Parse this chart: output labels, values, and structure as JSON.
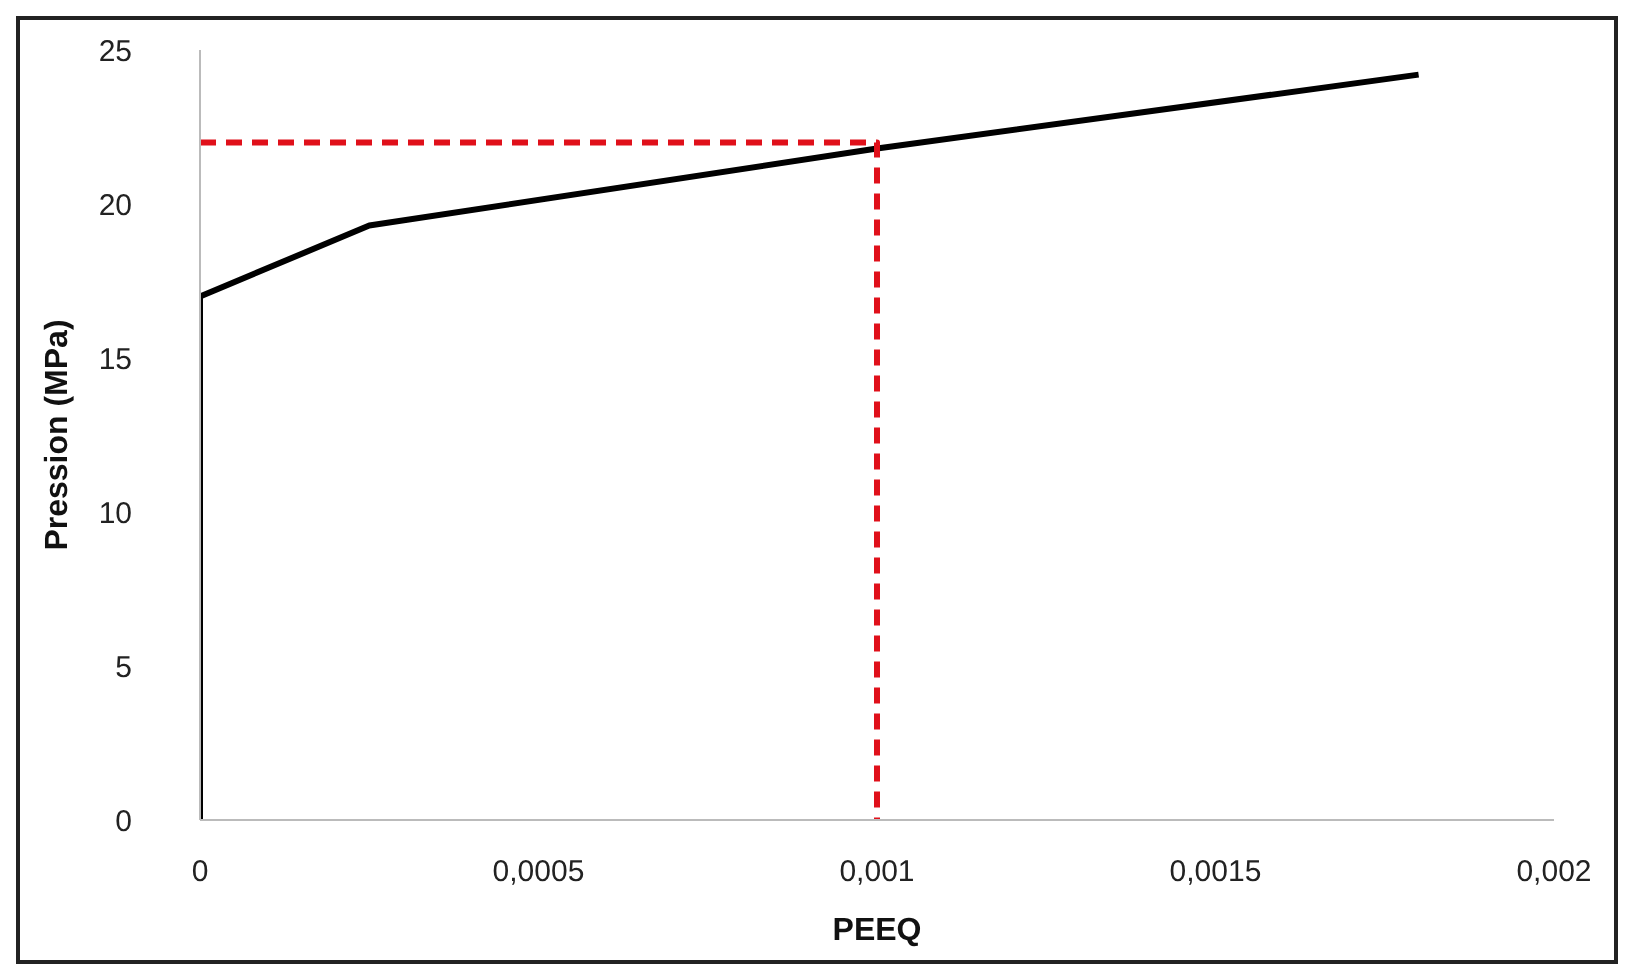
{
  "chart_data": {
    "type": "line",
    "xlabel": "PEEQ",
    "ylabel": "Pression (MPa)",
    "series": [
      {
        "color": "#000000",
        "x": [
          0,
          0,
          0.00025,
          0.001,
          0.0018
        ],
        "values": [
          0,
          17,
          19.3,
          21.8,
          24.2
        ],
        "line_style": "solid"
      },
      {
        "color": "#e0101a",
        "x": [
          0,
          0.001,
          0.001
        ],
        "values": [
          22,
          22,
          0
        ],
        "line_style": "dashed"
      }
    ],
    "xlim": [
      0,
      0.002
    ],
    "xticks": [
      0,
      {
        "value": 0.0005,
        "label": "0,0005"
      },
      {
        "value": 0.001,
        "label": "0,001"
      },
      {
        "value": 0.0015,
        "label": "0,0015"
      },
      {
        "value": 0.002,
        "label": "0,002"
      }
    ],
    "ylim": [
      0,
      25
    ],
    "yticks": [
      0,
      5,
      10,
      15,
      20,
      25
    ],
    "grid": false,
    "marker": "none"
  }
}
